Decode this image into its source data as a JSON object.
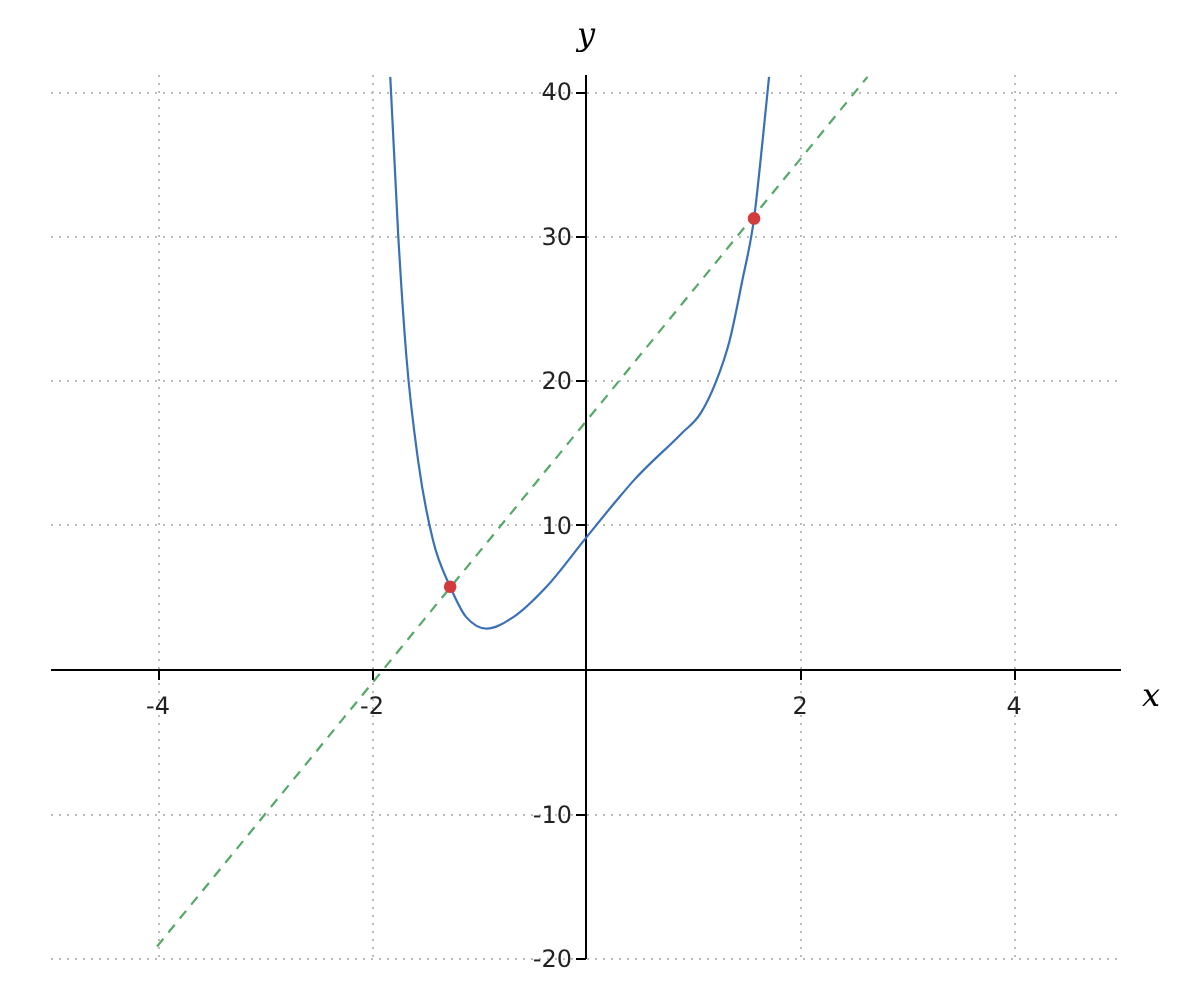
{
  "chart_data": {
    "type": "line",
    "xlabel": "x",
    "ylabel": "y",
    "xlim": [
      -5,
      5
    ],
    "ylim": [
      -20,
      41.2
    ],
    "xticks": [
      -4,
      -2,
      2,
      4
    ],
    "yticks": [
      -20,
      -10,
      10,
      20,
      30,
      40
    ],
    "grid": true,
    "series": [
      {
        "x": [
          -1.82,
          -1.746,
          -1.671,
          -1.559,
          -1.42,
          -1.26,
          -1.11,
          -0.92,
          -0.67,
          -0.36,
          0,
          0.32,
          0.46,
          0.9,
          1.08,
          1.23,
          1.35,
          1.47,
          1.58,
          1.66,
          1.72
        ],
        "values": [
          41,
          30.1,
          21.8,
          14.4,
          8.9,
          5.7,
          3.6,
          2.8,
          3.6,
          5.7,
          9.0,
          11.9,
          13.1,
          16.3,
          17.7,
          20.0,
          22.7,
          26.9,
          31.2,
          36.6,
          41
        ],
        "color": "#3a70b8"
      },
      {
        "x": [
          -4,
          2.64
        ],
        "values": [
          -19.2,
          41
        ],
        "color": "#55a868",
        "line_style": "dashed"
      },
      {
        "type": "scatter",
        "x": [
          -1.26,
          1.58
        ],
        "values": [
          5.7,
          31.2
        ],
        "color": "#d13b3b",
        "marker": "circle"
      }
    ]
  }
}
